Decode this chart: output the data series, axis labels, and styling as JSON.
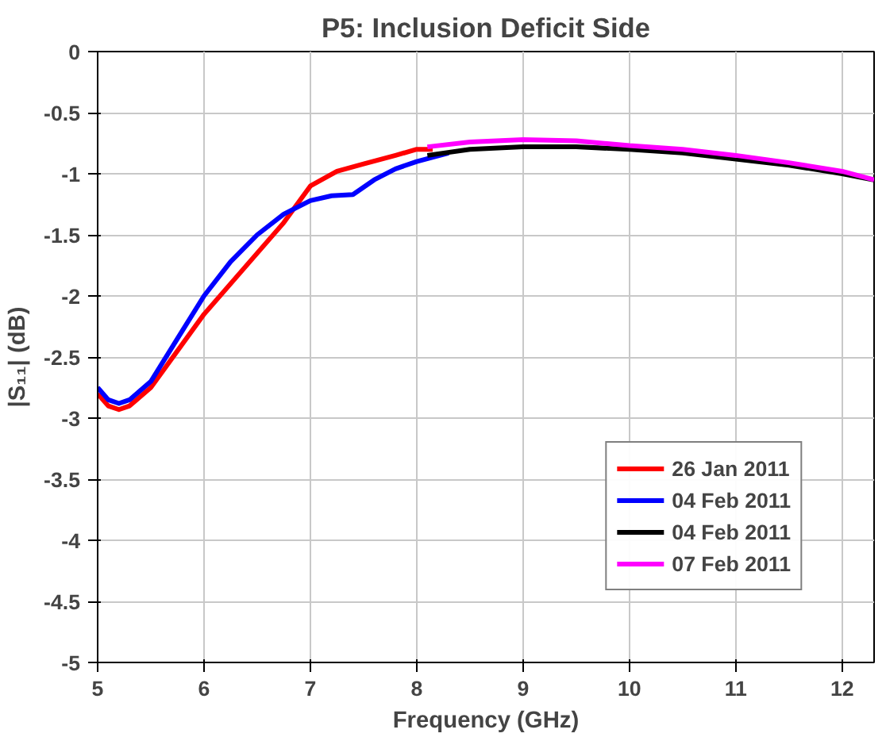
{
  "chart_data": {
    "type": "line",
    "title": "P5: Inclusion Deficit Side",
    "xlabel": "Frequency (GHz)",
    "ylabel": "|S₁₁| (dB)",
    "xlim": [
      5,
      12.3
    ],
    "xticks": [
      5,
      6,
      7,
      8,
      9,
      10,
      11,
      12
    ],
    "ylim": [
      -5,
      0
    ],
    "yticks": [
      -5,
      -4.5,
      -4,
      -3.5,
      -3,
      -2.5,
      -2,
      -1.5,
      -1,
      -0.5,
      0
    ],
    "grid": true,
    "legend": "bottom right",
    "line_style": "solid",
    "marker": "none",
    "series": [
      {
        "name": "26 Jan 2011",
        "color": "#ff0000",
        "x": [
          5,
          5.1,
          5.2,
          5.3,
          5.5,
          5.75,
          6,
          6.25,
          6.5,
          6.75,
          7,
          7.25,
          7.5,
          7.8,
          8,
          8.15
        ],
        "values": [
          -2.8,
          -2.9,
          -2.93,
          -2.9,
          -2.75,
          -2.45,
          -2.15,
          -1.9,
          -1.65,
          -1.4,
          -1.1,
          -0.98,
          -0.92,
          -0.85,
          -0.8,
          -0.8
        ]
      },
      {
        "name": "04 Feb 2011",
        "color": "#0000ff",
        "x": [
          5,
          5.1,
          5.2,
          5.3,
          5.5,
          5.75,
          6,
          6.25,
          6.5,
          6.75,
          7,
          7.2,
          7.4,
          7.6,
          7.8,
          8,
          8.3
        ],
        "values": [
          -2.75,
          -2.85,
          -2.88,
          -2.85,
          -2.7,
          -2.35,
          -2.0,
          -1.72,
          -1.5,
          -1.33,
          -1.22,
          -1.18,
          -1.17,
          -1.05,
          -0.96,
          -0.9,
          -0.83
        ]
      },
      {
        "name": "04 Feb 2011",
        "color": "#000000",
        "x": [
          8.1,
          8.5,
          9,
          9.5,
          10,
          10.5,
          11,
          11.5,
          12,
          12.3
        ],
        "values": [
          -0.85,
          -0.8,
          -0.78,
          -0.78,
          -0.8,
          -0.83,
          -0.88,
          -0.93,
          -1.0,
          -1.05
        ]
      },
      {
        "name": "07 Feb 2011",
        "color": "#ff00ff",
        "x": [
          8.1,
          8.5,
          9,
          9.5,
          10,
          10.5,
          11,
          11.5,
          12,
          12.3
        ],
        "values": [
          -0.78,
          -0.74,
          -0.72,
          -0.73,
          -0.77,
          -0.8,
          -0.85,
          -0.91,
          -0.98,
          -1.05
        ]
      }
    ]
  }
}
